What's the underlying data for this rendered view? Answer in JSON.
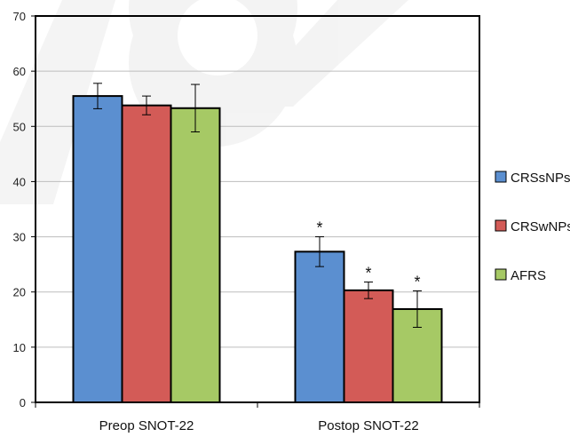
{
  "chart_data": {
    "type": "bar",
    "categories": [
      "Preop SNOT-22",
      "Postop SNOT-22"
    ],
    "series": [
      {
        "name": "CRSsNPs",
        "color": "#5B8FD0",
        "values": [
          55.5,
          27.3
        ],
        "errors": [
          2.3,
          2.7
        ]
      },
      {
        "name": "CRSwNPs",
        "color": "#D35B57",
        "values": [
          53.8,
          20.3
        ],
        "errors": [
          1.7,
          1.5
        ]
      },
      {
        "name": "AFRS",
        "color": "#A6C965",
        "values": [
          53.3,
          16.9
        ],
        "errors": [
          4.3,
          3.3
        ]
      }
    ],
    "annotations": {
      "postop_marker": "*"
    },
    "ylim": [
      0,
      70
    ],
    "yticks": [
      0,
      10,
      20,
      30,
      40,
      50,
      60,
      70
    ],
    "grid": true,
    "legend_position": "right",
    "title": "",
    "xlabel": "",
    "ylabel": ""
  }
}
